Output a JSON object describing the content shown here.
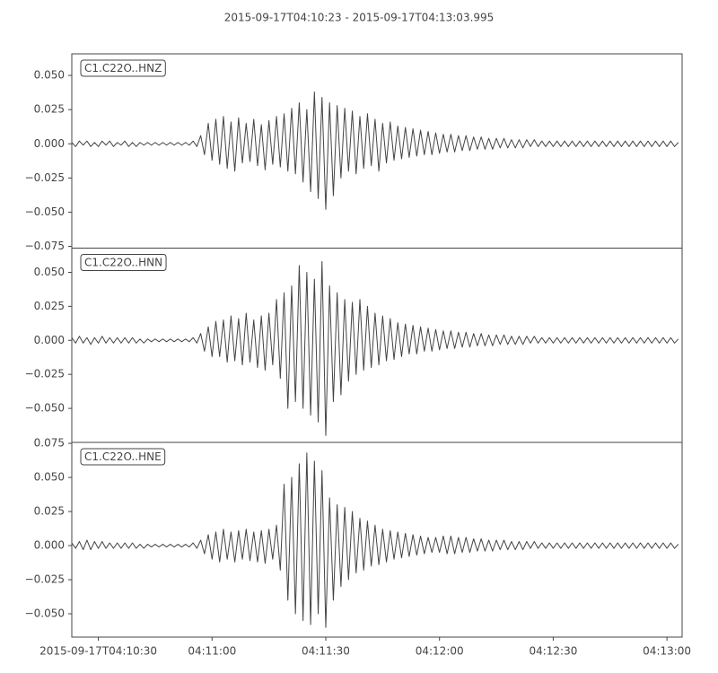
{
  "chart_data": [
    {
      "type": "line",
      "title": "2015-09-17T04:10:23  -  2015-09-17T04:13:03.995",
      "label": "C1.C22O..HNZ",
      "color": "#444444",
      "xlim": [
        23,
        183.995
      ],
      "ylim": [
        -0.0763,
        0.0658
      ],
      "yticks": [
        {
          "value": -0.075,
          "label": "−0.075"
        },
        {
          "value": -0.05,
          "label": "−0.050"
        },
        {
          "value": -0.025,
          "label": "−0.025"
        },
        {
          "value": 0,
          "label": "0.000"
        },
        {
          "value": 0.025,
          "label": "0.025"
        },
        {
          "value": 0.05,
          "label": "0.050"
        }
      ],
      "x": [
        23,
        24,
        25,
        26,
        27,
        28,
        29,
        30,
        31,
        32,
        33,
        34,
        35,
        36,
        37,
        38,
        39,
        40,
        41,
        42,
        43,
        44,
        45,
        46,
        47,
        48,
        49,
        50,
        51,
        52,
        53,
        54,
        55,
        56,
        57,
        58,
        59,
        60,
        61,
        62,
        63,
        64,
        65,
        66,
        67,
        68,
        69,
        70,
        71,
        72,
        73,
        74,
        75,
        76,
        77,
        78,
        79,
        80,
        81,
        82,
        83,
        84,
        85,
        86,
        87,
        88,
        89,
        90,
        91,
        92,
        93,
        94,
        95,
        96,
        97,
        98,
        99,
        100,
        101,
        102,
        103,
        104,
        105,
        106,
        107,
        108,
        109,
        110,
        111,
        112,
        113,
        114,
        115,
        116,
        117,
        118,
        119,
        120,
        121,
        122,
        123,
        124,
        125,
        126,
        127,
        128,
        129,
        130,
        131,
        132,
        133,
        134,
        135,
        136,
        137,
        138,
        139,
        140,
        141,
        142,
        143,
        144,
        145,
        146,
        147,
        148,
        149,
        150,
        151,
        152,
        153,
        154,
        155,
        156,
        157,
        158,
        159,
        160,
        161,
        162,
        163,
        164,
        165,
        166,
        167,
        168,
        169,
        170,
        171,
        172,
        173,
        174,
        175,
        176,
        177,
        178,
        179,
        180,
        181,
        182,
        183
      ],
      "values": [
        0.001,
        -0.002,
        0.002,
        -0.001,
        0.002,
        -0.002,
        0.001,
        -0.002,
        0.002,
        -0.001,
        0.002,
        -0.002,
        0.001,
        -0.001,
        0.002,
        -0.002,
        0.001,
        -0.002,
        0.001,
        -0.001,
        0.001,
        -0.001,
        0.001,
        -0.001,
        0.001,
        -0.001,
        0.001,
        -0.001,
        0.001,
        -0.001,
        0.001,
        -0.001,
        0.002,
        -0.002,
        0.006,
        -0.008,
        0.015,
        -0.012,
        0.018,
        -0.015,
        0.02,
        -0.018,
        0.016,
        -0.02,
        0.019,
        -0.014,
        0.015,
        -0.013,
        0.018,
        -0.016,
        0.014,
        -0.019,
        0.017,
        -0.015,
        0.02,
        -0.017,
        0.022,
        -0.02,
        0.026,
        -0.022,
        0.03,
        -0.028,
        0.025,
        -0.035,
        0.038,
        -0.04,
        0.034,
        -0.048,
        0.03,
        -0.038,
        0.028,
        -0.025,
        0.026,
        -0.02,
        0.024,
        -0.022,
        0.02,
        -0.018,
        0.022,
        -0.016,
        0.018,
        -0.02,
        0.015,
        -0.014,
        0.016,
        -0.012,
        0.013,
        -0.011,
        0.012,
        -0.01,
        0.011,
        -0.009,
        0.01,
        -0.008,
        0.009,
        -0.008,
        0.008,
        -0.007,
        0.007,
        -0.006,
        0.007,
        -0.006,
        0.006,
        -0.005,
        0.006,
        -0.005,
        0.005,
        -0.004,
        0.005,
        -0.004,
        0.004,
        -0.004,
        0.004,
        -0.003,
        0.004,
        -0.003,
        0.003,
        -0.003,
        0.003,
        -0.003,
        0.003,
        -0.002,
        0.003,
        -0.002,
        0.002,
        -0.002,
        0.002,
        -0.002,
        0.002,
        -0.002,
        0.002,
        -0.002,
        0.002,
        -0.002,
        0.002,
        -0.002,
        0.002,
        -0.002,
        0.002,
        -0.002,
        0.002,
        -0.002,
        0.002,
        -0.002,
        0.002,
        -0.002,
        0.002,
        -0.002,
        0.002,
        -0.002,
        0.002,
        -0.002,
        0.002,
        -0.002,
        0.002,
        -0.002,
        0.002,
        -0.002,
        0.002,
        -0.002,
        0.001
      ]
    },
    {
      "type": "line",
      "label": "C1.C22O..HNN",
      "color": "#444444",
      "xlim": [
        23,
        183.995
      ],
      "ylim": [
        -0.075,
        0.0678
      ],
      "yticks": [
        {
          "value": -0.05,
          "label": "−0.050"
        },
        {
          "value": -0.025,
          "label": "−0.025"
        },
        {
          "value": 0,
          "label": "0.000"
        },
        {
          "value": 0.025,
          "label": "0.025"
        },
        {
          "value": 0.05,
          "label": "0.050"
        }
      ],
      "x": [
        23,
        24,
        25,
        26,
        27,
        28,
        29,
        30,
        31,
        32,
        33,
        34,
        35,
        36,
        37,
        38,
        39,
        40,
        41,
        42,
        43,
        44,
        45,
        46,
        47,
        48,
        49,
        50,
        51,
        52,
        53,
        54,
        55,
        56,
        57,
        58,
        59,
        60,
        61,
        62,
        63,
        64,
        65,
        66,
        67,
        68,
        69,
        70,
        71,
        72,
        73,
        74,
        75,
        76,
        77,
        78,
        79,
        80,
        81,
        82,
        83,
        84,
        85,
        86,
        87,
        88,
        89,
        90,
        91,
        92,
        93,
        94,
        95,
        96,
        97,
        98,
        99,
        100,
        101,
        102,
        103,
        104,
        105,
        106,
        107,
        108,
        109,
        110,
        111,
        112,
        113,
        114,
        115,
        116,
        117,
        118,
        119,
        120,
        121,
        122,
        123,
        124,
        125,
        126,
        127,
        128,
        129,
        130,
        131,
        132,
        133,
        134,
        135,
        136,
        137,
        138,
        139,
        140,
        141,
        142,
        143,
        144,
        145,
        146,
        147,
        148,
        149,
        150,
        151,
        152,
        153,
        154,
        155,
        156,
        157,
        158,
        159,
        160,
        161,
        162,
        163,
        164,
        165,
        166,
        167,
        168,
        169,
        170,
        171,
        172,
        173,
        174,
        175,
        176,
        177,
        178,
        179,
        180,
        181,
        182,
        183
      ],
      "values": [
        0.002,
        -0.002,
        0.003,
        -0.002,
        0.002,
        -0.003,
        0.002,
        -0.002,
        0.003,
        -0.002,
        0.002,
        -0.002,
        0.002,
        -0.002,
        0.002,
        -0.002,
        0.002,
        -0.002,
        0.001,
        -0.002,
        0.001,
        -0.001,
        0.001,
        -0.001,
        0.001,
        -0.001,
        0.001,
        -0.001,
        0.001,
        -0.001,
        0.001,
        -0.001,
        0.002,
        -0.002,
        0.005,
        -0.008,
        0.01,
        -0.012,
        0.014,
        -0.012,
        0.015,
        -0.016,
        0.018,
        -0.015,
        0.016,
        -0.018,
        0.02,
        -0.016,
        0.015,
        -0.02,
        0.018,
        -0.022,
        0.02,
        -0.018,
        0.03,
        -0.028,
        0.035,
        -0.05,
        0.04,
        -0.045,
        0.055,
        -0.05,
        0.05,
        -0.055,
        0.045,
        -0.06,
        0.058,
        -0.07,
        0.04,
        -0.045,
        0.035,
        -0.04,
        0.03,
        -0.03,
        0.028,
        -0.025,
        0.03,
        -0.022,
        0.025,
        -0.02,
        0.02,
        -0.018,
        0.018,
        -0.015,
        0.016,
        -0.014,
        0.013,
        -0.012,
        0.012,
        -0.01,
        0.011,
        -0.01,
        0.01,
        -0.008,
        0.009,
        -0.008,
        0.008,
        -0.007,
        0.007,
        -0.006,
        0.007,
        -0.006,
        0.006,
        -0.005,
        0.006,
        -0.005,
        0.005,
        -0.004,
        0.005,
        -0.004,
        0.004,
        -0.004,
        0.004,
        -0.003,
        0.004,
        -0.003,
        0.003,
        -0.003,
        0.003,
        -0.003,
        0.003,
        -0.002,
        0.003,
        -0.002,
        0.002,
        -0.002,
        0.002,
        -0.002,
        0.002,
        -0.002,
        0.002,
        -0.002,
        0.002,
        -0.002,
        0.002,
        -0.002,
        0.002,
        -0.002,
        0.002,
        -0.002,
        0.002,
        -0.002,
        0.002,
        -0.002,
        0.002,
        -0.002,
        0.002,
        -0.002,
        0.002,
        -0.002,
        0.002,
        -0.002,
        0.002,
        -0.002,
        0.002,
        -0.002,
        0.002,
        -0.002,
        0.002,
        -0.002,
        0.001
      ]
    },
    {
      "type": "line",
      "label": "C1.C22O..HNE",
      "color": "#444444",
      "xlim": [
        23,
        183.995
      ],
      "ylim": [
        -0.0671,
        0.0757
      ],
      "yticks": [
        {
          "value": -0.05,
          "label": "−0.050"
        },
        {
          "value": -0.025,
          "label": "−0.025"
        },
        {
          "value": 0,
          "label": "0.000"
        },
        {
          "value": 0.025,
          "label": "0.025"
        },
        {
          "value": 0.05,
          "label": "0.050"
        },
        {
          "value": 0.075,
          "label": "0.075"
        }
      ],
      "xticks": [
        {
          "value": 30,
          "label": "2015-09-17T04:10:30"
        },
        {
          "value": 60,
          "label": "04:11:00"
        },
        {
          "value": 90,
          "label": "04:11:30"
        },
        {
          "value": 120,
          "label": "04:12:00"
        },
        {
          "value": 150,
          "label": "04:12:30"
        },
        {
          "value": 180,
          "label": "04:13:00"
        }
      ],
      "x": [
        23,
        24,
        25,
        26,
        27,
        28,
        29,
        30,
        31,
        32,
        33,
        34,
        35,
        36,
        37,
        38,
        39,
        40,
        41,
        42,
        43,
        44,
        45,
        46,
        47,
        48,
        49,
        50,
        51,
        52,
        53,
        54,
        55,
        56,
        57,
        58,
        59,
        60,
        61,
        62,
        63,
        64,
        65,
        66,
        67,
        68,
        69,
        70,
        71,
        72,
        73,
        74,
        75,
        76,
        77,
        78,
        79,
        80,
        81,
        82,
        83,
        84,
        85,
        86,
        87,
        88,
        89,
        90,
        91,
        92,
        93,
        94,
        95,
        96,
        97,
        98,
        99,
        100,
        101,
        102,
        103,
        104,
        105,
        106,
        107,
        108,
        109,
        110,
        111,
        112,
        113,
        114,
        115,
        116,
        117,
        118,
        119,
        120,
        121,
        122,
        123,
        124,
        125,
        126,
        127,
        128,
        129,
        130,
        131,
        132,
        133,
        134,
        135,
        136,
        137,
        138,
        139,
        140,
        141,
        142,
        143,
        144,
        145,
        146,
        147,
        148,
        149,
        150,
        151,
        152,
        153,
        154,
        155,
        156,
        157,
        158,
        159,
        160,
        161,
        162,
        163,
        164,
        165,
        166,
        167,
        168,
        169,
        170,
        171,
        172,
        173,
        174,
        175,
        176,
        177,
        178,
        179,
        180,
        181,
        182,
        183
      ],
      "values": [
        0.002,
        -0.002,
        0.003,
        -0.003,
        0.004,
        -0.003,
        0.003,
        -0.002,
        0.003,
        -0.002,
        0.002,
        -0.002,
        0.002,
        -0.002,
        0.002,
        -0.002,
        0.002,
        -0.002,
        0.001,
        -0.002,
        0.001,
        -0.001,
        0.001,
        -0.001,
        0.001,
        -0.001,
        0.001,
        -0.001,
        0.001,
        -0.001,
        0.001,
        -0.001,
        0.002,
        -0.002,
        0.004,
        -0.006,
        0.008,
        -0.01,
        0.01,
        -0.012,
        0.012,
        -0.01,
        0.01,
        -0.012,
        0.011,
        -0.01,
        0.012,
        -0.011,
        0.01,
        -0.012,
        0.011,
        -0.013,
        0.012,
        -0.01,
        0.015,
        -0.018,
        0.045,
        -0.04,
        0.05,
        -0.05,
        0.06,
        -0.055,
        0.068,
        -0.058,
        0.062,
        -0.05,
        0.055,
        -0.06,
        0.035,
        -0.04,
        0.03,
        -0.03,
        0.028,
        -0.025,
        0.025,
        -0.02,
        0.02,
        -0.018,
        0.018,
        -0.015,
        0.015,
        -0.014,
        0.012,
        -0.012,
        0.011,
        -0.01,
        0.01,
        -0.009,
        0.009,
        -0.008,
        0.008,
        -0.007,
        0.007,
        -0.006,
        0.006,
        -0.005,
        0.006,
        -0.005,
        0.007,
        -0.006,
        0.007,
        -0.006,
        0.006,
        -0.005,
        0.006,
        -0.005,
        0.005,
        -0.004,
        0.005,
        -0.004,
        0.004,
        -0.004,
        0.004,
        -0.003,
        0.004,
        -0.003,
        0.003,
        -0.003,
        0.003,
        -0.003,
        0.003,
        -0.002,
        0.003,
        -0.002,
        0.002,
        -0.002,
        0.002,
        -0.002,
        0.002,
        -0.002,
        0.002,
        -0.002,
        0.002,
        -0.002,
        0.002,
        -0.002,
        0.002,
        -0.002,
        0.002,
        -0.002,
        0.002,
        -0.002,
        0.002,
        -0.002,
        0.002,
        -0.002,
        0.002,
        -0.002,
        0.002,
        -0.002,
        0.002,
        -0.002,
        0.002,
        -0.002,
        0.002,
        -0.002,
        0.002,
        -0.002,
        0.002,
        -0.002,
        0.001
      ]
    }
  ]
}
